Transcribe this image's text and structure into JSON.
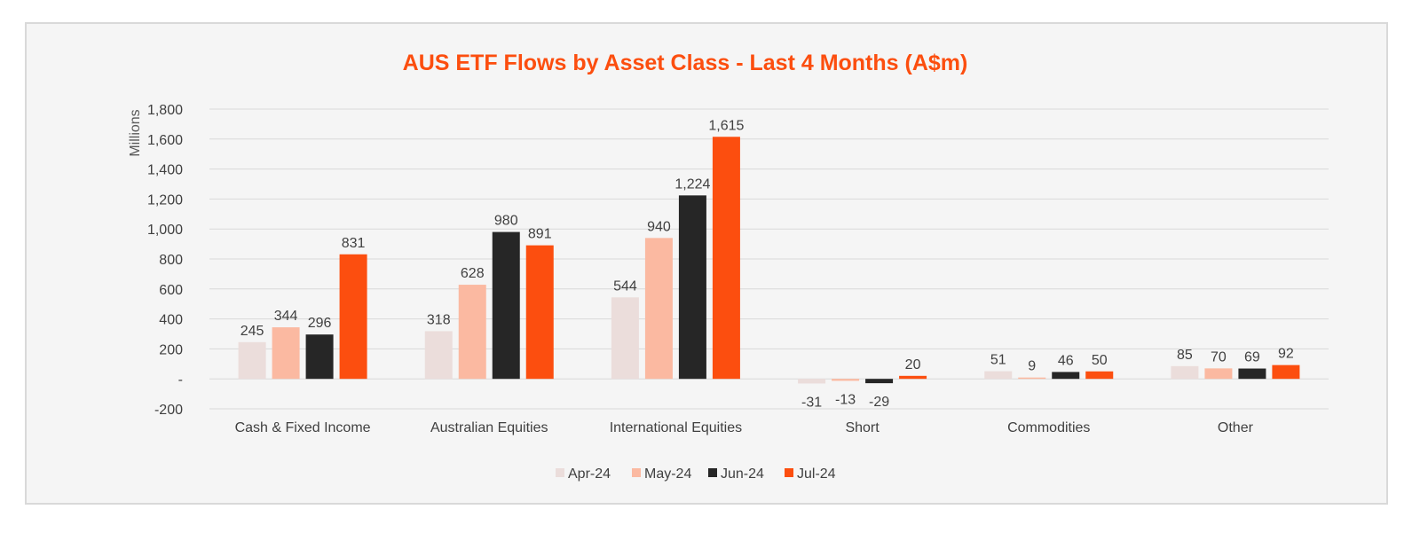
{
  "chart_data": {
    "type": "bar",
    "title": "AUS ETF Flows by Asset Class - Last 4 Months (A$m)",
    "ylabel": "Millions",
    "xlabel": "",
    "ylim": [
      -200,
      1800
    ],
    "yticks": [
      -200,
      0,
      200,
      400,
      600,
      800,
      1000,
      1200,
      1400,
      1600,
      1800
    ],
    "ytick_labels": [
      "-200",
      "-",
      "200",
      "400",
      "600",
      "800",
      "1,000",
      "1,200",
      "1,400",
      "1,600",
      "1,800"
    ],
    "grid": true,
    "legend_position": "bottom",
    "categories": [
      "Cash & Fixed Income",
      "Australian Equities",
      "International Equities",
      "Short",
      "Commodities",
      "Other"
    ],
    "series": [
      {
        "name": "Apr-24",
        "color": "#ebdddb",
        "values": [
          245,
          318,
          544,
          -31,
          51,
          85
        ],
        "labels": [
          "245",
          "318",
          "544",
          "-31",
          "51",
          "85"
        ]
      },
      {
        "name": "May-24",
        "color": "#fbb9a1",
        "values": [
          344,
          628,
          940,
          -13,
          9,
          70
        ],
        "labels": [
          "344",
          "628",
          "940",
          "-13",
          "9",
          "70"
        ]
      },
      {
        "name": "Jun-24",
        "color": "#262626",
        "values": [
          296,
          980,
          1224,
          -29,
          46,
          69
        ],
        "labels": [
          "296",
          "980",
          "1,224",
          "-29",
          "46",
          "69"
        ]
      },
      {
        "name": "Jul-24",
        "color": "#fc4e0f",
        "values": [
          831,
          891,
          1615,
          20,
          50,
          92
        ],
        "labels": [
          "831",
          "891",
          "1,615",
          "20",
          "50",
          "92"
        ]
      }
    ]
  }
}
